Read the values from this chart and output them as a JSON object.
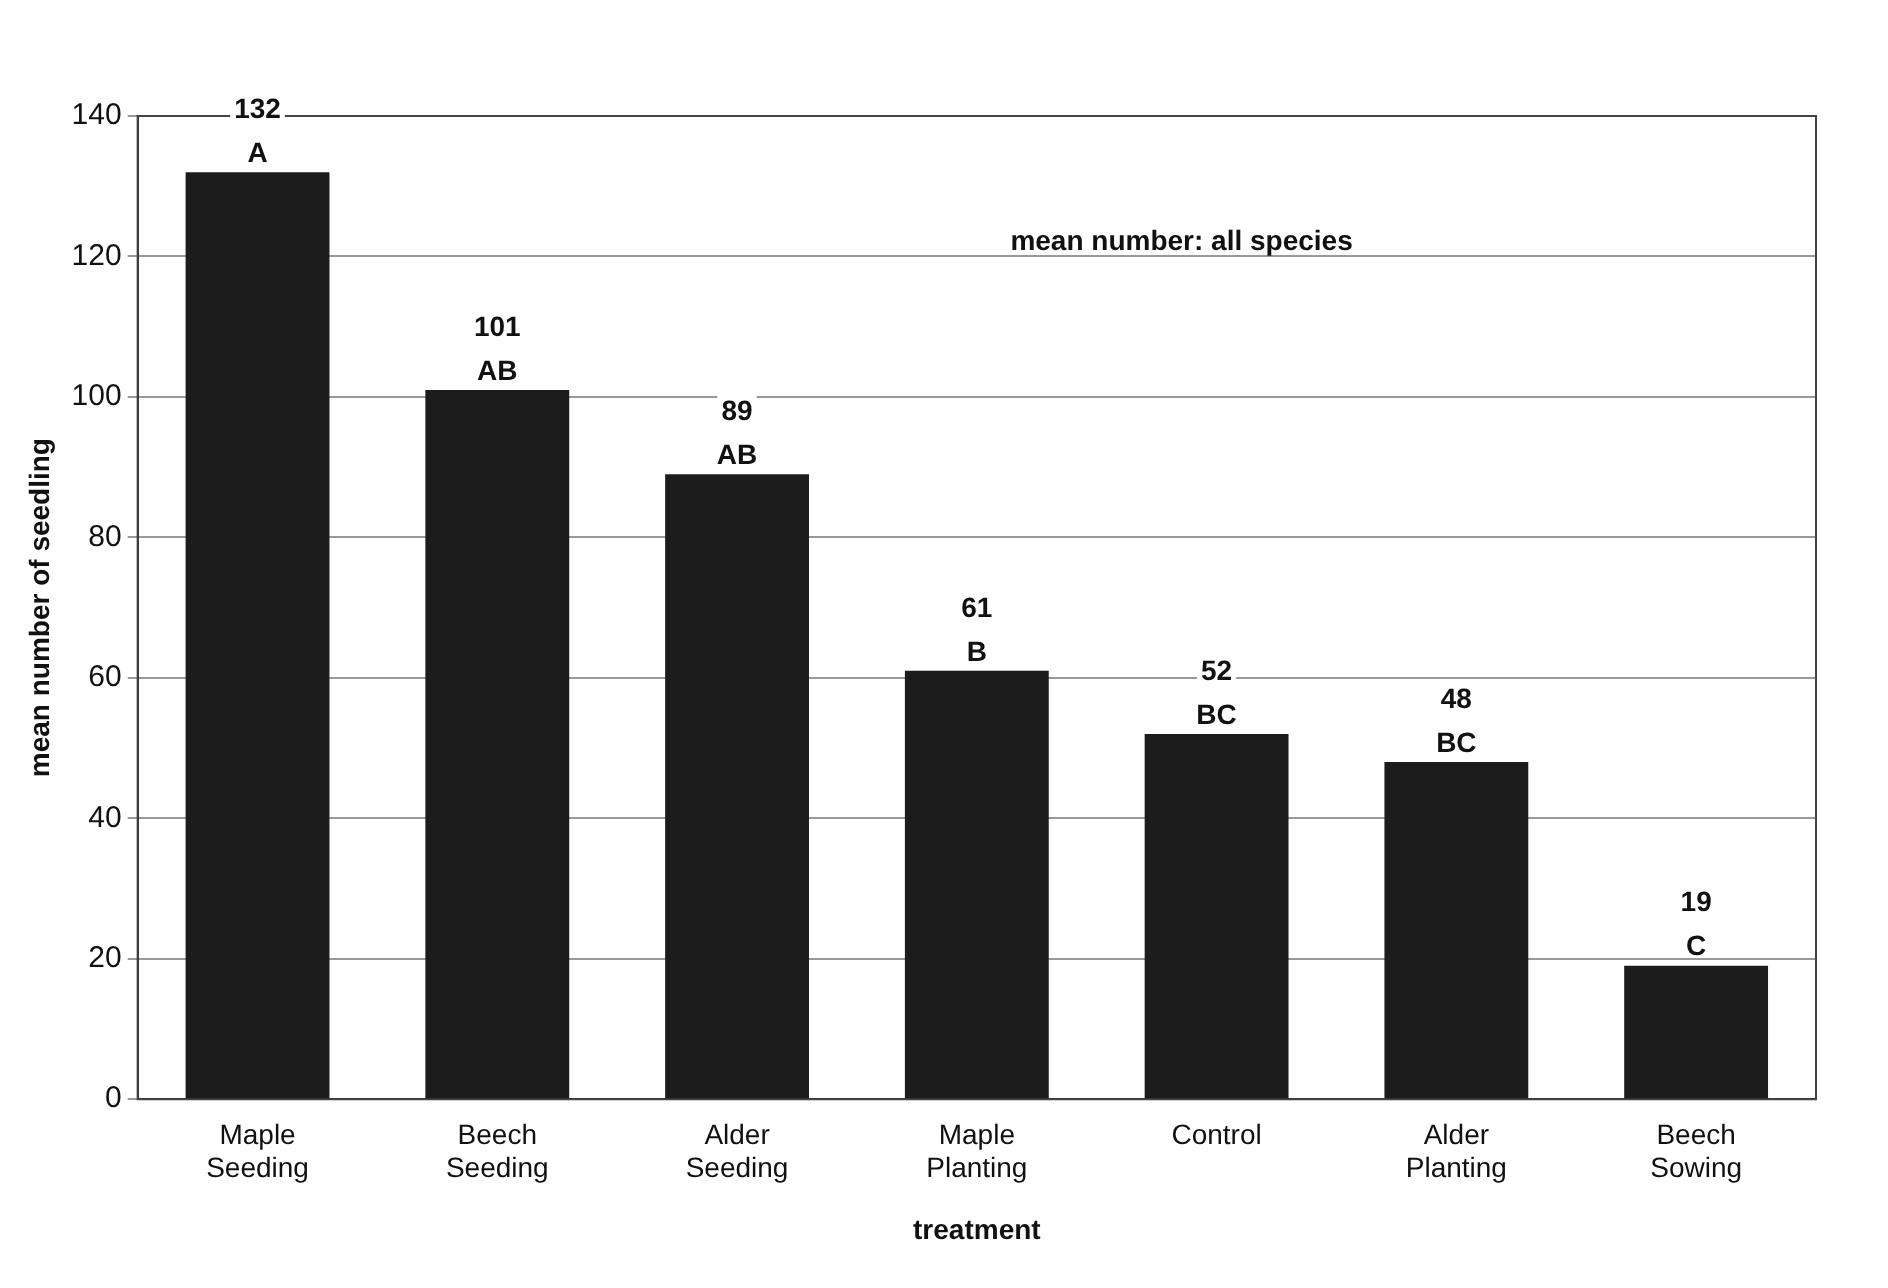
{
  "chart_data": {
    "type": "bar",
    "xlabel": "treatment",
    "ylabel": "mean number of seedling",
    "categories": [
      "Maple Seeding",
      "Beech Seeding",
      "Alder Seeding",
      "Maple Planting",
      "Control",
      "Alder Planting",
      "Beech Sowing"
    ],
    "values": [
      132,
      101,
      89,
      61,
      52,
      48,
      19
    ],
    "color": "#1c1c1c",
    "ylim": [
      0,
      140
    ],
    "yticks": [
      0,
      20,
      40,
      60,
      80,
      100,
      120,
      140
    ],
    "grid": "y",
    "data_labels": true,
    "annotations": [
      "mean number: all species",
      {
        "text": "A",
        "x": "Maple Seeding",
        "y": 132
      },
      {
        "text": "AB",
        "x": "Beech Seeding",
        "y": 101
      },
      {
        "text": "AB",
        "x": "Alder Seeding",
        "y": 89
      },
      {
        "text": "B",
        "x": "Maple Planting",
        "y": 61
      },
      {
        "text": "BC",
        "x": "Control",
        "y": 52
      },
      {
        "text": "BC",
        "x": "Alder Planting",
        "y": 48
      },
      {
        "text": "C",
        "x": "Beech Sowing",
        "y": 19
      }
    ]
  }
}
